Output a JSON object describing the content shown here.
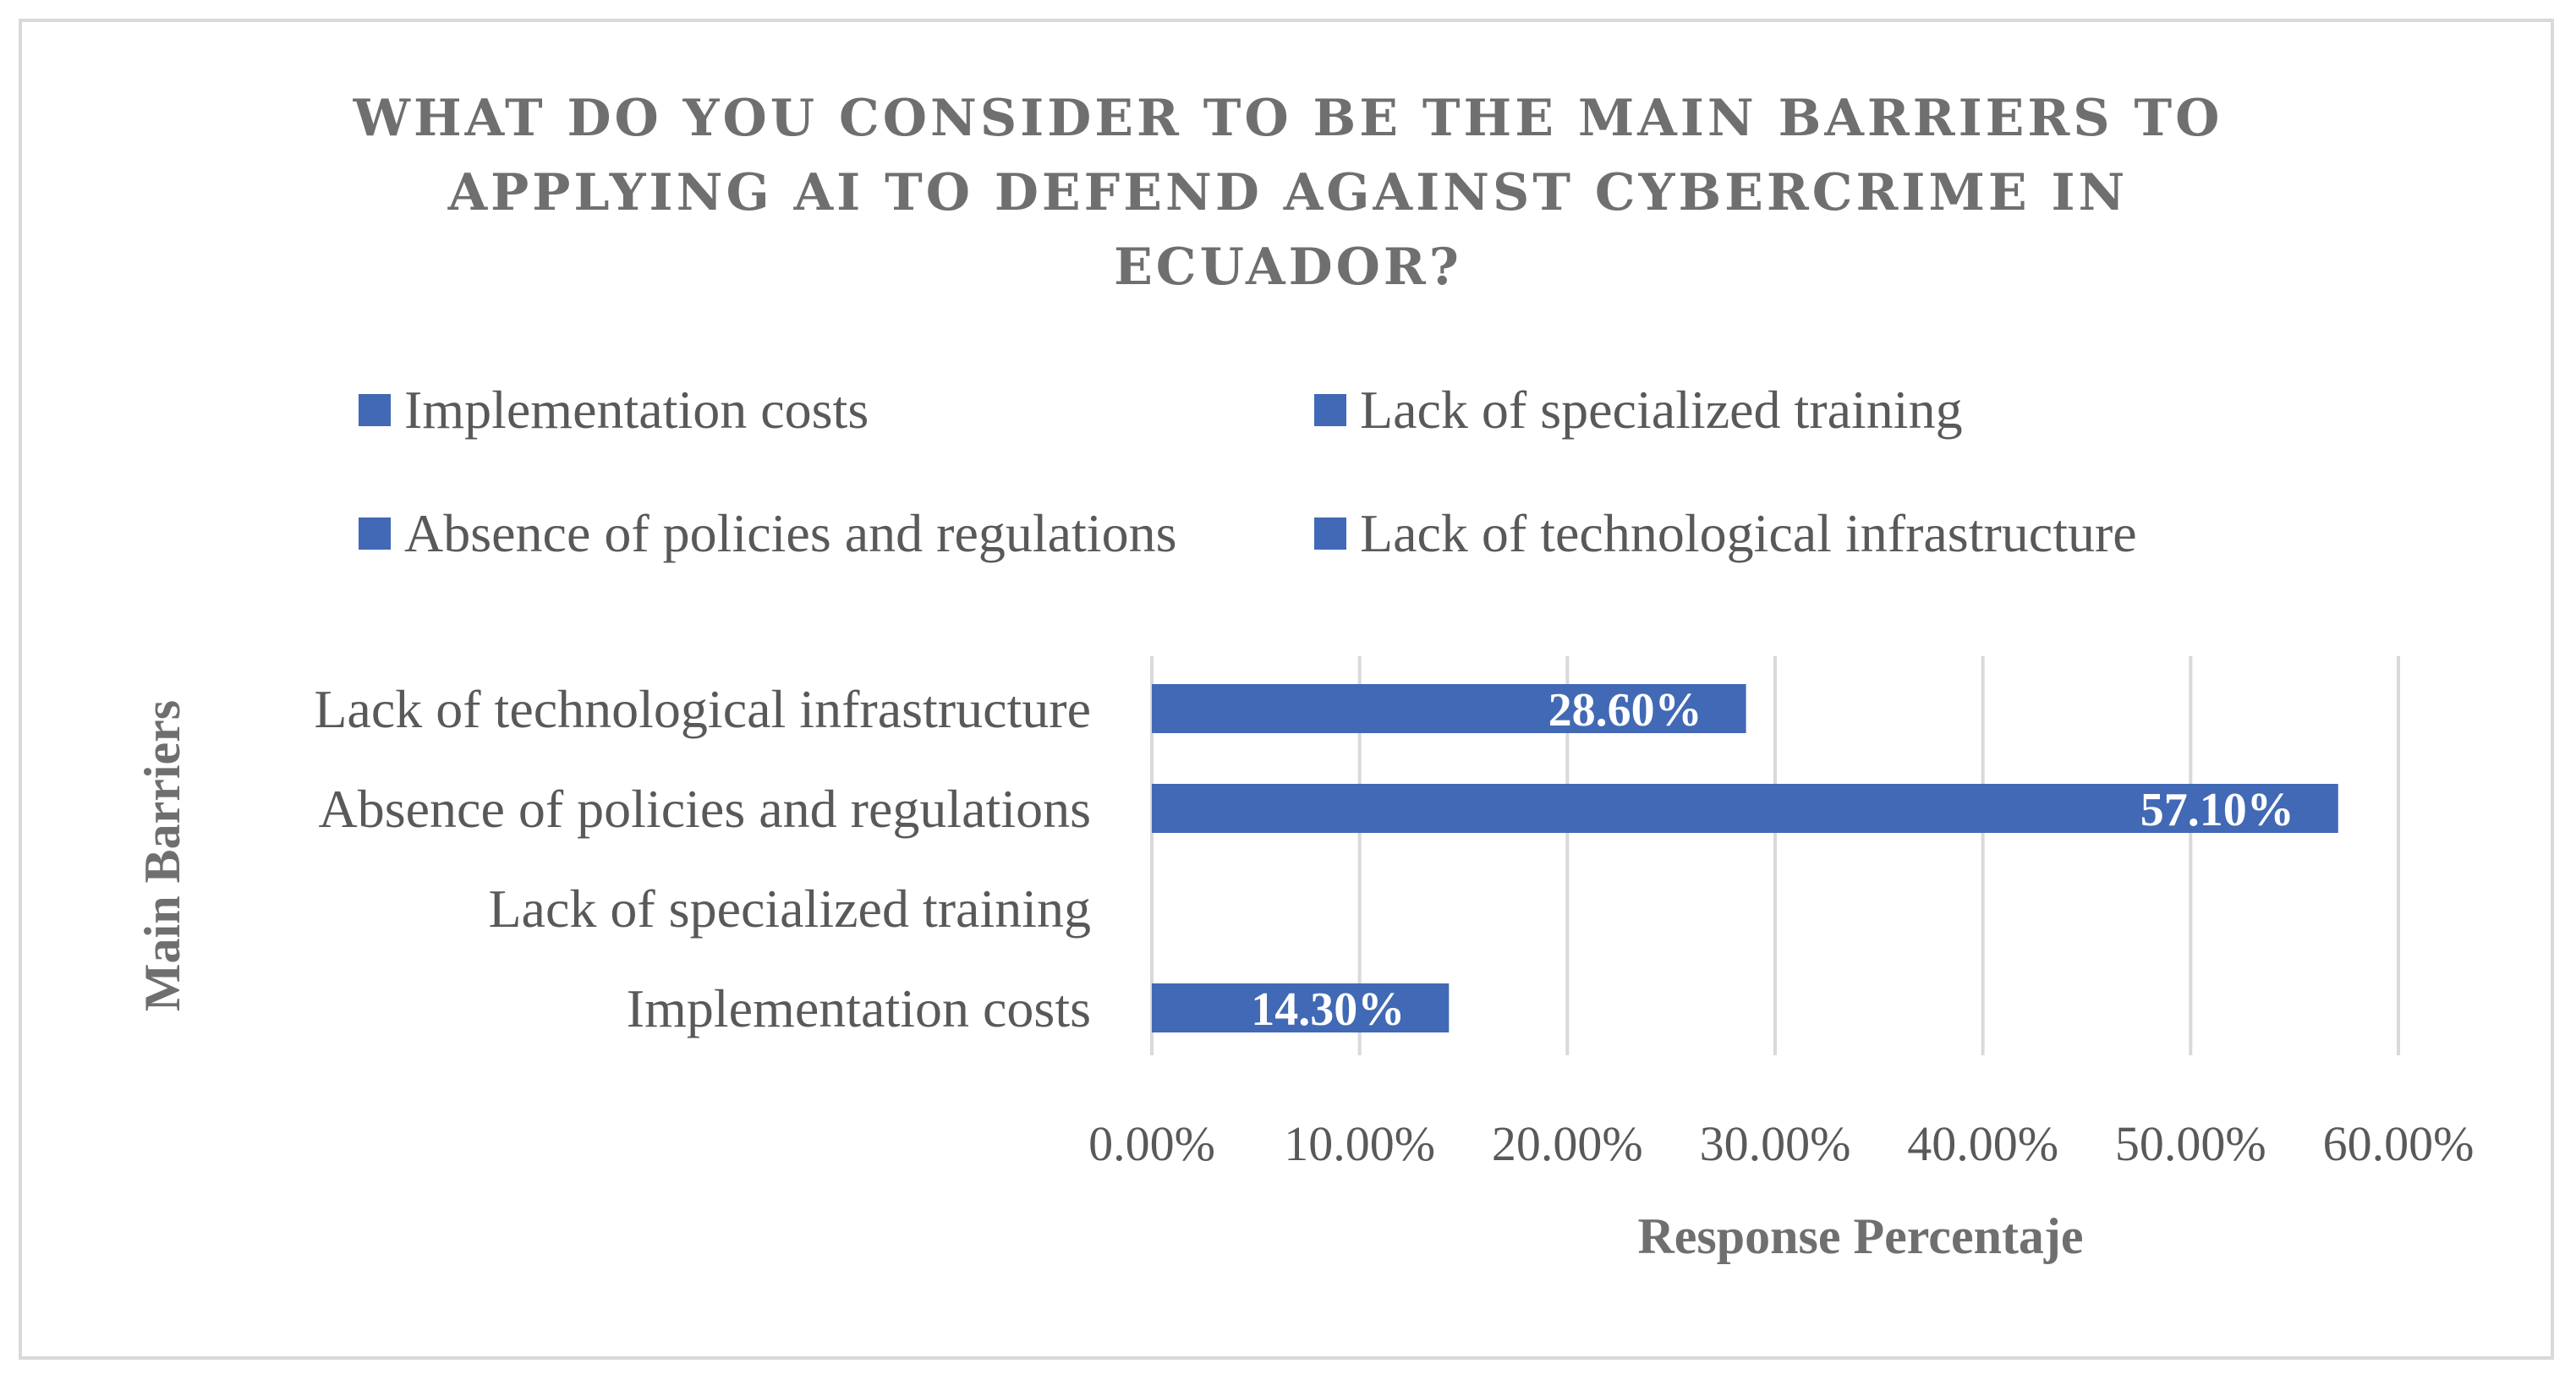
{
  "chart_data": {
    "type": "bar",
    "orientation": "horizontal",
    "title_lines": [
      "WHAT DO YOU CONSIDER TO BE THE MAIN BARRIERS TO",
      "APPLYING AI TO DEFEND AGAINST CYBERCRIME IN",
      "ECUADOR?"
    ],
    "xlabel": "Response Percentaje",
    "ylabel": "Main Barriers",
    "categories": [
      "Implementation costs",
      "Lack of specialized training",
      "Absence of policies and regulations",
      "Lack of technological infrastructure"
    ],
    "values": [
      14.3,
      0,
      57.1,
      28.6
    ],
    "data_labels": [
      "14.30%",
      "",
      "57.10%",
      "28.60%"
    ],
    "xlim": [
      0,
      60
    ],
    "x_ticks": [
      0,
      10,
      20,
      30,
      40,
      50,
      60
    ],
    "x_tick_labels": [
      "0.00%",
      "10.00%",
      "20.00%",
      "30.00%",
      "40.00%",
      "50.00%",
      "60.00%"
    ],
    "legend": {
      "placement": "top",
      "entries": [
        "Implementation costs",
        "Lack of specialized training",
        "Absence of policies and regulations",
        "Lack of technological infrastructure"
      ]
    },
    "grid": "vertical",
    "colors": {
      "bar": "#4169b5",
      "grid": "#d9d9d9",
      "text": "#595959",
      "title": "#6f6f6f",
      "border": "#d9d9d9"
    }
  }
}
